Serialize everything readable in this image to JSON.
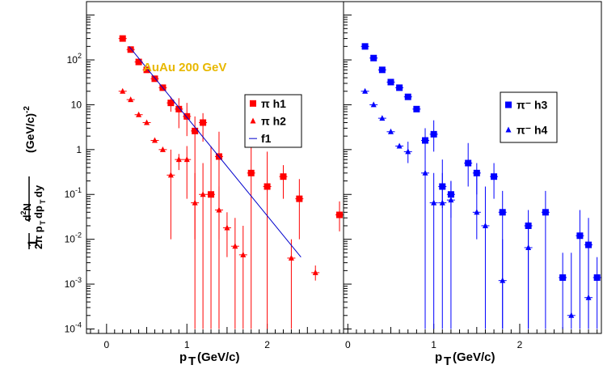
{
  "chart_data": [
    {
      "type": "scatter",
      "panel": "left",
      "xlabel": "p_T (GeV/c)",
      "ylabel": "1/(2π p_T) d²N/(dp_T dy) (GeV/c)^-2",
      "xlim": [
        -0.25,
        2.95
      ],
      "ylim_log10": [
        -4.1,
        3.3
      ],
      "xticks": [
        "0",
        "1",
        "2"
      ],
      "yticks": [
        "10^-4",
        "10^-3",
        "10^-2",
        "10^-1",
        "1",
        "10",
        "10^2"
      ],
      "annotation": {
        "text": "AuAu 200 GeV",
        "color": "#e8b800"
      },
      "legend": [
        {
          "label": "π h1",
          "marker": "square",
          "color": "#ff0000"
        },
        {
          "label": "π h2",
          "marker": "triangle",
          "color": "#ff0000"
        },
        {
          "label": "f1",
          "marker": "line",
          "color": "#0000cc"
        }
      ],
      "series": [
        {
          "name": "π h1",
          "marker": "square",
          "color": "#ff0000",
          "points": [
            {
              "x": 0.2,
              "y": 300,
              "lo": 300,
              "hi": 300
            },
            {
              "x": 0.3,
              "y": 170,
              "lo": 170,
              "hi": 170
            },
            {
              "x": 0.4,
              "y": 90,
              "lo": 90,
              "hi": 90
            },
            {
              "x": 0.5,
              "y": 60,
              "lo": 60,
              "hi": 60
            },
            {
              "x": 0.6,
              "y": 38,
              "lo": 38,
              "hi": 38
            },
            {
              "x": 0.7,
              "y": 24,
              "lo": 24,
              "hi": 24
            },
            {
              "x": 0.8,
              "y": 11,
              "lo": 7,
              "hi": 15
            },
            {
              "x": 0.9,
              "y": 8,
              "lo": 3,
              "hi": 14
            },
            {
              "x": 1.0,
              "y": 5.5,
              "lo": 2,
              "hi": 11
            },
            {
              "x": 1.1,
              "y": 2.6,
              "lo": 0.0001,
              "hi": 5.5
            },
            {
              "x": 1.2,
              "y": 4,
              "lo": 1.5,
              "hi": 6.5
            },
            {
              "x": 1.3,
              "y": 0.1,
              "lo": 0.0001,
              "hi": 1.2
            },
            {
              "x": 1.4,
              "y": 0.7,
              "lo": 0.0001,
              "hi": 2.5
            },
            {
              "x": 1.8,
              "y": 0.3,
              "lo": 0.0001,
              "hi": 1.6
            },
            {
              "x": 2.0,
              "y": 0.15,
              "lo": 0.0001,
              "hi": 0.9
            },
            {
              "x": 2.2,
              "y": 0.25,
              "lo": 0.08,
              "hi": 0.45
            },
            {
              "x": 2.4,
              "y": 0.08,
              "lo": 0.01,
              "hi": 0.22
            },
            {
              "x": 2.9,
              "y": 0.035,
              "lo": 0.015,
              "hi": 0.07
            }
          ]
        },
        {
          "name": "π h2",
          "marker": "triangle",
          "color": "#ff0000",
          "points": [
            {
              "x": 0.2,
              "y": 20,
              "lo": 20,
              "hi": 20
            },
            {
              "x": 0.3,
              "y": 13,
              "lo": 13,
              "hi": 13
            },
            {
              "x": 0.4,
              "y": 6,
              "lo": 6,
              "hi": 6
            },
            {
              "x": 0.5,
              "y": 4,
              "lo": 4,
              "hi": 4
            },
            {
              "x": 0.6,
              "y": 1.6,
              "lo": 1.6,
              "hi": 1.6
            },
            {
              "x": 0.7,
              "y": 1.0,
              "lo": 0.9,
              "hi": 1.1
            },
            {
              "x": 0.8,
              "y": 0.27,
              "lo": 0.01,
              "hi": 1.0
            },
            {
              "x": 0.9,
              "y": 0.6,
              "lo": 0.35,
              "hi": 0.8
            },
            {
              "x": 1.0,
              "y": 0.6,
              "lo": 0.08,
              "hi": 1.2
            },
            {
              "x": 1.1,
              "y": 0.065,
              "lo": 0.01,
              "hi": 0.3
            },
            {
              "x": 1.2,
              "y": 0.1,
              "lo": 0.0001,
              "hi": 0.5
            },
            {
              "x": 1.4,
              "y": 0.045,
              "lo": 0.01,
              "hi": 0.15
            },
            {
              "x": 1.5,
              "y": 0.018,
              "lo": 0.004,
              "hi": 0.04
            },
            {
              "x": 1.6,
              "y": 0.007,
              "lo": 0.0001,
              "hi": 0.03
            },
            {
              "x": 1.7,
              "y": 0.0045,
              "lo": 0.0001,
              "hi": 0.02
            },
            {
              "x": 2.3,
              "y": 0.0038,
              "lo": 0.0001,
              "hi": 0.01
            },
            {
              "x": 2.6,
              "y": 0.0018,
              "lo": 0.0012,
              "hi": 0.0026
            }
          ]
        },
        {
          "name": "f1",
          "type": "line",
          "color": "#0000cc",
          "points": [
            {
              "x": 0.28,
              "y": 200
            },
            {
              "x": 2.42,
              "y": 0.004
            }
          ]
        }
      ]
    },
    {
      "type": "scatter",
      "panel": "right",
      "xlabel": "p_T (GeV/c)",
      "xlim": [
        -0.05,
        2.95
      ],
      "ylim_log10": [
        -4.1,
        3.3
      ],
      "xticks": [
        "0",
        "1",
        "2"
      ],
      "legend": [
        {
          "label": "π⁻ h3",
          "marker": "square",
          "color": "#0000ff"
        },
        {
          "label": "π⁻ h4",
          "marker": "triangle",
          "color": "#0000ff"
        }
      ],
      "series": [
        {
          "name": "π⁻ h3",
          "marker": "square",
          "color": "#0000ff",
          "points": [
            {
              "x": 0.2,
              "y": 200,
              "lo": 200,
              "hi": 200
            },
            {
              "x": 0.3,
              "y": 110,
              "lo": 110,
              "hi": 110
            },
            {
              "x": 0.4,
              "y": 60,
              "lo": 60,
              "hi": 60
            },
            {
              "x": 0.5,
              "y": 32,
              "lo": 32,
              "hi": 32
            },
            {
              "x": 0.6,
              "y": 24,
              "lo": 22,
              "hi": 26
            },
            {
              "x": 0.7,
              "y": 15,
              "lo": 13,
              "hi": 17
            },
            {
              "x": 0.8,
              "y": 8,
              "lo": 7,
              "hi": 9
            },
            {
              "x": 0.9,
              "y": 1.6,
              "lo": 0.6,
              "hi": 3
            },
            {
              "x": 1.0,
              "y": 2.2,
              "lo": 0.9,
              "hi": 4.5
            },
            {
              "x": 1.1,
              "y": 0.15,
              "lo": 0.05,
              "hi": 0.6
            },
            {
              "x": 1.2,
              "y": 0.1,
              "lo": 0.03,
              "hi": 0.2
            },
            {
              "x": 1.4,
              "y": 0.5,
              "lo": 0.15,
              "hi": 1.4
            },
            {
              "x": 1.5,
              "y": 0.3,
              "lo": 0.1,
              "hi": 0.5
            },
            {
              "x": 1.7,
              "y": 0.25,
              "lo": 0.08,
              "hi": 0.5
            },
            {
              "x": 1.8,
              "y": 0.04,
              "lo": 0.0001,
              "hi": 0.12
            },
            {
              "x": 2.1,
              "y": 0.02,
              "lo": 0.0001,
              "hi": 0.045
            },
            {
              "x": 2.3,
              "y": 0.04,
              "lo": 0.0001,
              "hi": 0.12
            },
            {
              "x": 2.5,
              "y": 0.0014,
              "lo": 0.0001,
              "hi": 0.005
            },
            {
              "x": 2.7,
              "y": 0.012,
              "lo": 0.0001,
              "hi": 0.045
            },
            {
              "x": 2.8,
              "y": 0.0075,
              "lo": 0.0001,
              "hi": 0.03
            },
            {
              "x": 2.9,
              "y": 0.0014,
              "lo": 0.0001,
              "hi": 0.004
            }
          ]
        },
        {
          "name": "π⁻ h4",
          "marker": "triangle",
          "color": "#0000ff",
          "points": [
            {
              "x": 0.2,
              "y": 20,
              "lo": 20,
              "hi": 20
            },
            {
              "x": 0.3,
              "y": 10,
              "lo": 10,
              "hi": 10
            },
            {
              "x": 0.4,
              "y": 5,
              "lo": 5,
              "hi": 5
            },
            {
              "x": 0.5,
              "y": 2.5,
              "lo": 2.5,
              "hi": 2.5
            },
            {
              "x": 0.6,
              "y": 1.2,
              "lo": 1.2,
              "hi": 1.2
            },
            {
              "x": 0.7,
              "y": 0.9,
              "lo": 0.5,
              "hi": 1.5
            },
            {
              "x": 0.9,
              "y": 0.3,
              "lo": 0.0001,
              "hi": 1.2
            },
            {
              "x": 1.0,
              "y": 0.065,
              "lo": 0.0001,
              "hi": 0.3
            },
            {
              "x": 1.1,
              "y": 0.065,
              "lo": 0.0001,
              "hi": 0.3
            },
            {
              "x": 1.2,
              "y": 0.075,
              "lo": 0.0001,
              "hi": 0.2
            },
            {
              "x": 1.5,
              "y": 0.04,
              "lo": 0.01,
              "hi": 0.3
            },
            {
              "x": 1.6,
              "y": 0.02,
              "lo": 0.0001,
              "hi": 0.15
            },
            {
              "x": 1.8,
              "y": 0.0012,
              "lo": 0.0001,
              "hi": 0.01
            },
            {
              "x": 2.1,
              "y": 0.0065,
              "lo": 0.0001,
              "hi": 0.025
            },
            {
              "x": 2.6,
              "y": 0.0002,
              "lo": 0.0001,
              "hi": 0.005
            },
            {
              "x": 2.8,
              "y": 0.0005,
              "lo": 0.0001,
              "hi": 0.01
            }
          ]
        }
      ]
    }
  ]
}
